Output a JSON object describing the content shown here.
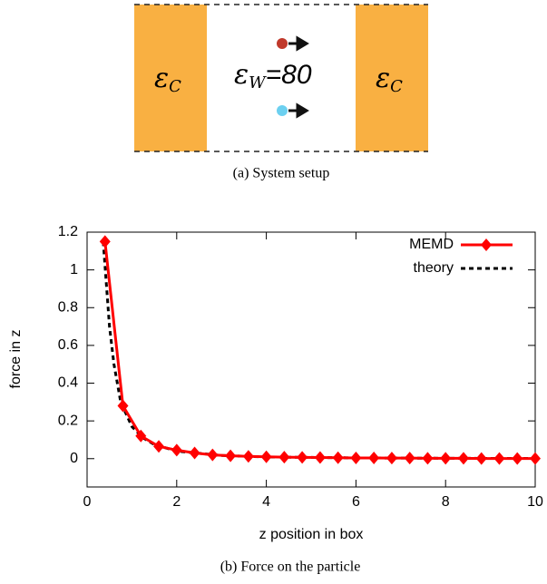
{
  "diagram": {
    "left_region": {
      "symbol": "ε",
      "subscript": "C"
    },
    "middle_region": {
      "symbol": "ε",
      "subscript": "W",
      "rest": "=80"
    },
    "right_region": {
      "symbol": "ε",
      "subscript": "C"
    },
    "caption": "(a) System setup"
  },
  "chart_data": {
    "type": "line",
    "caption": "(b) Force on the particle",
    "x_label": "z position in box",
    "y_label": "force in z",
    "xlim": [
      0,
      10
    ],
    "ylim": [
      -0.15,
      1.2
    ],
    "xticks": [
      0,
      2,
      4,
      6,
      8,
      10
    ],
    "yticks": [
      0,
      0.2,
      0.4,
      0.6,
      0.8,
      1,
      1.2
    ],
    "legend": "top-right",
    "series": [
      {
        "name": "MEMD",
        "color": "#ff0000",
        "dashed": false,
        "markers": true,
        "x": [
          0.4,
          0.8,
          1.2,
          1.6,
          2.0,
          2.4,
          2.8,
          3.2,
          3.6,
          4.0,
          4.4,
          4.8,
          5.2,
          5.6,
          6.0,
          6.4,
          6.8,
          7.2,
          7.6,
          8.0,
          8.4,
          8.8,
          9.2,
          9.6,
          10.0
        ],
        "values": [
          1.15,
          0.28,
          0.12,
          0.065,
          0.045,
          0.03,
          0.02,
          0.015,
          0.012,
          0.01,
          0.008,
          0.007,
          0.006,
          0.005,
          0.004,
          0.004,
          0.003,
          0.003,
          0.002,
          0.002,
          0.002,
          0.001,
          0.001,
          0.001,
          0.001
        ]
      },
      {
        "name": "theory",
        "color": "#000000",
        "dashed": true,
        "markers": false,
        "x": [
          0.36,
          0.5,
          0.6,
          0.75,
          1.0,
          1.25,
          1.5,
          2.0,
          3.0,
          4.0,
          6.0,
          8.0,
          10.0
        ],
        "values": [
          1.15,
          0.7,
          0.5,
          0.3,
          0.17,
          0.11,
          0.075,
          0.04,
          0.017,
          0.009,
          0.004,
          0.002,
          0.001
        ]
      }
    ]
  }
}
